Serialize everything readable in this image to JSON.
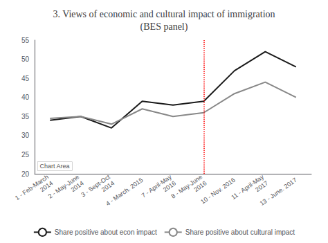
{
  "chart_data": {
    "type": "line",
    "title": "3. Views of economic and cultural impact of immigration\n(BES panel)",
    "categories": [
      "1 - Feb-March\n2014",
      "2 - May-June\n2014",
      "3 - Sept-Oct\n2014",
      "4 - March. 2015",
      "7 - April-May\n2016",
      "8 - May-June\n2016",
      "10 - Nov. 2016",
      "11 - April-May\n2017",
      "13 - June. 2017"
    ],
    "series": [
      {
        "name": "Share positive about econ impact",
        "color": "#1a1a1a",
        "values": [
          34,
          35,
          32,
          39,
          38,
          39,
          47,
          52,
          48
        ]
      },
      {
        "name": "Share positive about cultural impact",
        "color": "#888888",
        "values": [
          34.5,
          35,
          33,
          37,
          35,
          36,
          41,
          44,
          40
        ]
      }
    ],
    "ylim": [
      20,
      55
    ],
    "yticks": [
      20,
      25,
      30,
      35,
      40,
      45,
      50,
      55
    ],
    "grid": false,
    "legend": "bottom",
    "vline": {
      "category": "8 - May-June\n2016",
      "color": "#ff0000",
      "line_style": "dotted"
    },
    "annotations": [
      {
        "text": "Chart Area"
      }
    ]
  }
}
